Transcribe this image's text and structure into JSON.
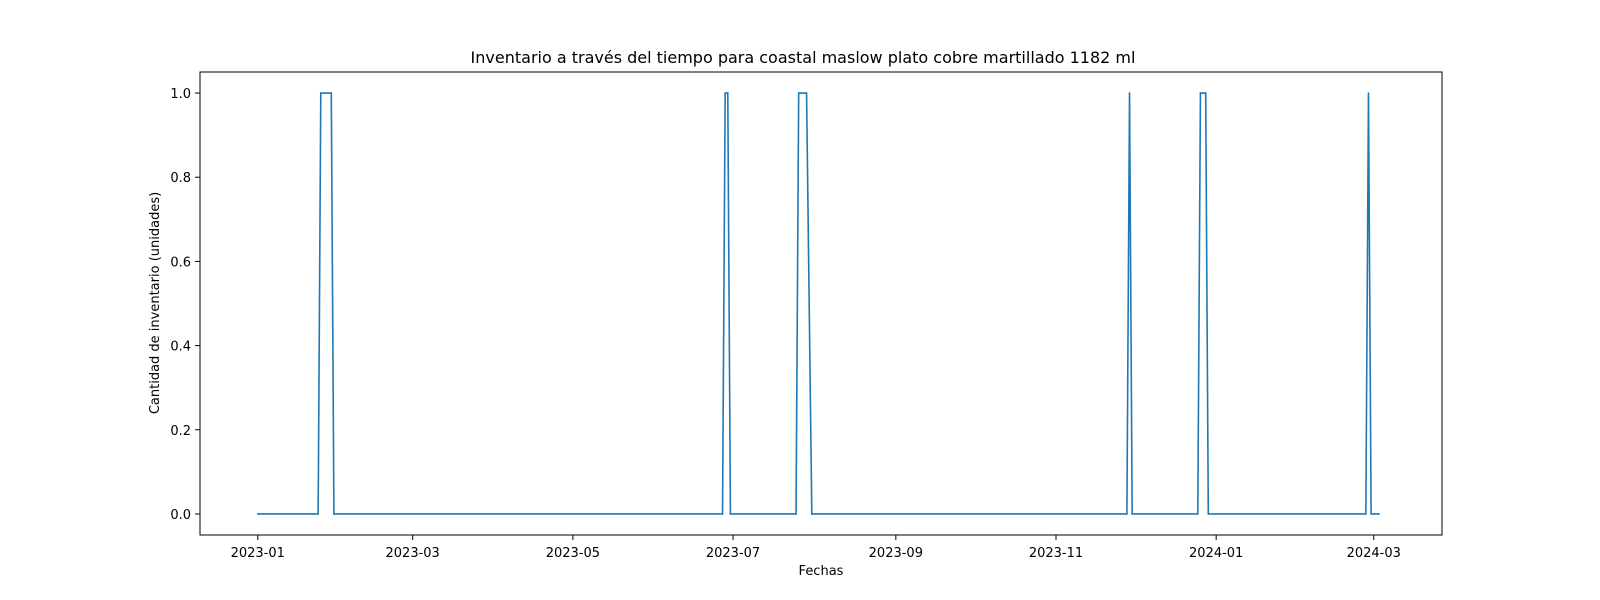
{
  "chart_data": {
    "type": "line",
    "title": "Inventario a través del tiempo para coastal maslow plato cobre martillado 1182 ml",
    "xlabel": "Fechas",
    "ylabel": "Cantidad de inventario (unidades)",
    "xlim": [
      "2022-12-10",
      "2024-03-27"
    ],
    "ylim": [
      -0.05,
      1.05
    ],
    "x_ticks": [
      "2023-01",
      "2023-03",
      "2023-05",
      "2023-07",
      "2023-09",
      "2023-11",
      "2024-01",
      "2024-03"
    ],
    "y_ticks": [
      "0.0",
      "0.2",
      "0.4",
      "0.6",
      "0.8",
      "1.0"
    ],
    "grid": false,
    "series": [
      {
        "color": "#1f77b4",
        "points": [
          [
            "2023-01-01",
            0
          ],
          [
            "2023-01-24",
            0
          ],
          [
            "2023-01-25",
            1
          ],
          [
            "2023-01-29",
            1
          ],
          [
            "2023-01-30",
            0
          ],
          [
            "2023-06-27",
            0
          ],
          [
            "2023-06-28",
            1
          ],
          [
            "2023-06-29",
            1
          ],
          [
            "2023-06-30",
            0
          ],
          [
            "2023-07-25",
            0
          ],
          [
            "2023-07-26",
            1
          ],
          [
            "2023-07-29",
            1
          ],
          [
            "2023-07-31",
            0
          ],
          [
            "2023-11-28",
            0
          ],
          [
            "2023-11-29",
            1
          ],
          [
            "2023-11-30",
            0
          ],
          [
            "2023-12-25",
            0
          ],
          [
            "2023-12-26",
            1
          ],
          [
            "2023-12-28",
            1
          ],
          [
            "2023-12-29",
            0
          ],
          [
            "2024-02-27",
            0
          ],
          [
            "2024-02-28",
            1
          ],
          [
            "2024-02-29",
            0
          ],
          [
            "2024-03-03",
            0
          ]
        ]
      }
    ]
  }
}
